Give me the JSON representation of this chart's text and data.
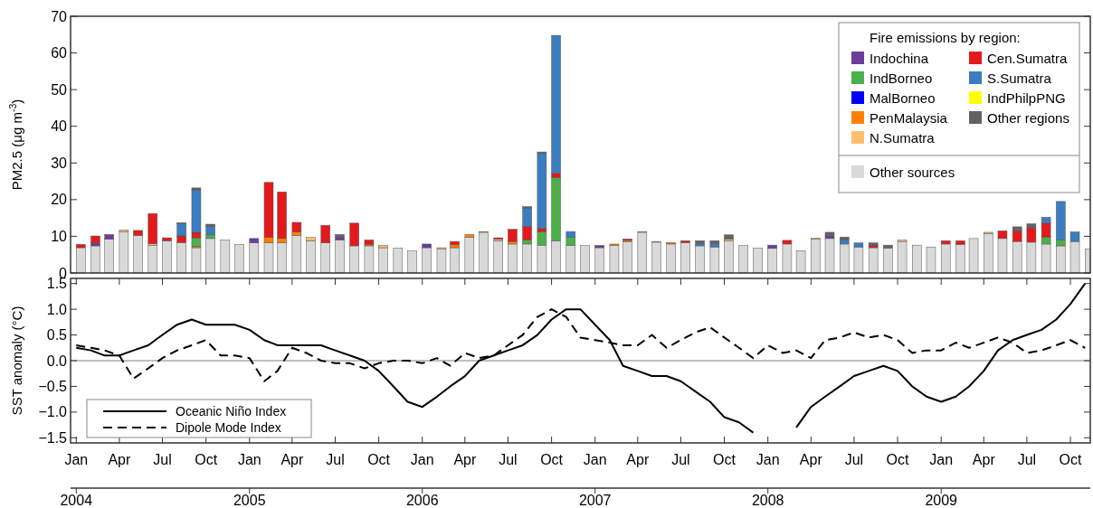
{
  "chart_data": [
    {
      "type": "bar",
      "stacked": true,
      "ylabel": "PM2.5 (μg m$^{-3}$)",
      "legend_title": "Fire emissions by region:",
      "legend": "top right",
      "tick_labels": "y",
      "x": [
        "2004-01",
        "2004-02",
        "2004-03",
        "2004-04",
        "2004-05",
        "2004-06",
        "2004-07",
        "2004-08",
        "2004-09",
        "2004-10",
        "2004-11",
        "2004-12",
        "2005-01",
        "2005-02",
        "2005-03",
        "2005-04",
        "2005-05",
        "2005-06",
        "2005-07",
        "2005-08",
        "2005-09",
        "2005-10",
        "2005-11",
        "2005-12",
        "2006-01",
        "2006-02",
        "2006-03",
        "2006-04",
        "2006-05",
        "2006-06",
        "2006-07",
        "2006-08",
        "2006-09",
        "2006-10",
        "2006-11",
        "2006-12",
        "2007-01",
        "2007-02",
        "2007-03",
        "2007-04",
        "2007-05",
        "2007-06",
        "2007-07",
        "2007-08",
        "2007-09",
        "2007-10",
        "2007-11",
        "2007-12",
        "2008-01",
        "2008-02",
        "2008-03",
        "2008-04",
        "2008-05",
        "2008-06",
        "2008-07",
        "2008-08",
        "2008-09",
        "2008-10",
        "2008-11",
        "2008-12",
        "2009-01",
        "2009-02",
        "2009-03",
        "2009-04",
        "2009-05",
        "2009-06",
        "2009-07",
        "2009-08",
        "2009-09",
        "2009-10",
        "2009-11"
      ],
      "xlim": [
        "2003-12-20",
        "2009-11-12"
      ],
      "ylim": [
        0,
        70
      ],
      "yticks": [
        0,
        10,
        20,
        30,
        40,
        50,
        60,
        70
      ],
      "series": [
        {
          "name": "Other sources",
          "color": "#d9d9d9",
          "values": [
            6.9,
            7.4,
            9.2,
            11.3,
            10.2,
            7.6,
            8.8,
            8.3,
            6.9,
            9.4,
            9.0,
            7.8,
            8.2,
            8.2,
            8.2,
            10.2,
            8.8,
            8.2,
            9.0,
            7.4,
            7.4,
            6.9,
            6.8,
            6.0,
            6.9,
            6.5,
            6.9,
            9.8,
            11.1,
            8.8,
            7.9,
            7.9,
            7.6,
            8.8,
            7.5,
            7.5,
            6.9,
            7.5,
            8.6,
            11.1,
            8.4,
            7.9,
            8.3,
            7.4,
            7.1,
            8.8,
            7.5,
            6.8,
            6.7,
            7.9,
            6.1,
            9.2,
            9.4,
            7.9,
            7.1,
            6.9,
            6.8,
            8.6,
            7.6,
            7.1,
            7.9,
            7.8,
            9.4,
            10.8,
            9.4,
            8.6,
            8.4,
            7.9,
            7.4,
            8.6,
            6.5
          ]
        },
        {
          "name": "N.Sumatra",
          "color": "#fdbf6f",
          "values": [
            0,
            0,
            0,
            0.4,
            0,
            0.4,
            0,
            0,
            0,
            0,
            0,
            0,
            0,
            0,
            0,
            0,
            0.9,
            0,
            0,
            0,
            0,
            0.6,
            0,
            0,
            0,
            0.4,
            0,
            0,
            0.2,
            0.4,
            0,
            0,
            0,
            0,
            0,
            0,
            0,
            0,
            0,
            0.2,
            0.2,
            0,
            0,
            0,
            0,
            0.4,
            0,
            0,
            0,
            0,
            0,
            0.3,
            0,
            0,
            0,
            0,
            0,
            0.4,
            0,
            0,
            0,
            0,
            0,
            0.3,
            0,
            0,
            0,
            0,
            0,
            0,
            0
          ]
        },
        {
          "name": "PenMalaysia",
          "color": "#ff7f00",
          "values": [
            0,
            0,
            0,
            0,
            0,
            0,
            0,
            0,
            0.3,
            0,
            0,
            0,
            0,
            1.5,
            1.2,
            1.0,
            0,
            0,
            0,
            0,
            0.4,
            0,
            0,
            0,
            0,
            0,
            0.8,
            0.7,
            0,
            0,
            0.7,
            0,
            0,
            0,
            0,
            0,
            0,
            0.4,
            0.3,
            0,
            0,
            0.4,
            0,
            0,
            0,
            0,
            0,
            0,
            0,
            0,
            0,
            0,
            0,
            0,
            0,
            0,
            0,
            0,
            0,
            0,
            0,
            0,
            0,
            0,
            0,
            0,
            0,
            0,
            0,
            0,
            0
          ]
        },
        {
          "name": "IndBorneo",
          "color": "#4daf4a",
          "values": [
            0,
            0,
            0,
            0,
            0,
            0,
            0,
            0,
            2.4,
            1.0,
            0,
            0,
            0,
            0,
            0,
            0,
            0,
            0,
            0,
            0,
            0,
            0,
            0,
            0,
            0,
            0,
            0,
            0,
            0,
            0,
            0,
            1.1,
            3.6,
            17.2,
            2.2,
            0,
            0,
            0,
            0,
            0,
            0,
            0,
            0,
            0,
            0,
            0,
            0,
            0,
            0,
            0,
            0,
            0,
            0,
            0,
            0,
            0,
            0,
            0,
            0,
            0,
            0,
            0,
            0,
            0,
            0,
            0,
            0,
            1.9,
            1.6,
            0,
            0
          ]
        },
        {
          "name": "Indochina",
          "color": "#6a3d9a",
          "values": [
            0,
            0.8,
            1.3,
            0,
            0,
            0,
            0,
            0,
            0,
            0,
            0,
            0,
            1.2,
            0,
            0,
            0,
            0,
            0,
            0.8,
            0,
            0,
            0,
            0,
            0,
            1.0,
            0,
            0,
            0,
            0,
            0,
            0,
            0,
            0,
            0,
            0,
            0,
            0.6,
            0,
            0,
            0,
            0,
            0,
            0,
            0,
            0,
            0,
            0,
            0,
            0.9,
            0,
            0,
            0,
            0.8,
            0,
            0,
            0,
            0,
            0,
            0,
            0,
            0,
            0,
            0,
            0,
            0,
            0,
            0,
            0,
            0,
            0,
            0
          ]
        },
        {
          "name": "MalBorneo",
          "color": "#0000ff",
          "values": [
            0,
            0,
            0,
            0,
            0,
            0,
            0,
            0,
            0,
            0,
            0,
            0,
            0,
            0,
            0,
            0,
            0,
            0,
            0,
            0,
            0,
            0,
            0,
            0,
            0,
            0,
            0,
            0,
            0,
            0,
            0,
            0,
            0,
            0,
            0,
            0,
            0,
            0,
            0,
            0,
            0,
            0,
            0,
            0,
            0,
            0,
            0,
            0,
            0,
            0,
            0,
            0,
            0,
            0,
            0,
            0,
            0,
            0,
            0,
            0,
            0,
            0,
            0,
            0,
            0,
            0,
            0,
            0,
            0,
            0,
            0
          ]
        },
        {
          "name": "Cen.Sumatra",
          "color": "#e31a1c",
          "values": [
            0.9,
            1.9,
            0,
            0,
            1.4,
            8.2,
            0.8,
            1.8,
            1.5,
            0,
            0,
            0,
            0,
            15.0,
            12.7,
            2.6,
            0,
            4.8,
            0,
            6.2,
            1.2,
            0,
            0,
            0,
            0,
            0,
            0.9,
            0,
            0,
            0.4,
            3.3,
            3.7,
            0.9,
            1.2,
            0,
            0,
            0,
            0,
            0.4,
            0,
            0,
            0,
            0.5,
            0,
            0,
            0,
            0,
            0,
            0,
            1.0,
            0,
            0,
            0,
            0,
            0,
            0.7,
            0,
            0,
            0,
            0,
            0.9,
            1.0,
            0,
            0,
            2.1,
            2.9,
            3.9,
            3.8,
            0,
            0,
            0
          ]
        },
        {
          "name": "S.Sumatra",
          "color": "#3a7dc0",
          "values": [
            0,
            0,
            0,
            0,
            0,
            0,
            0,
            3.3,
            11.5,
            2.3,
            0,
            0,
            0,
            0,
            0,
            0,
            0,
            0,
            0,
            0,
            0,
            0,
            0,
            0,
            0,
            0,
            0,
            0,
            0,
            0,
            0,
            5.0,
            20.5,
            37.6,
            1.6,
            0,
            0,
            0,
            0,
            0,
            0,
            0,
            0,
            0.7,
            0.9,
            0,
            0,
            0,
            0,
            0,
            0,
            0,
            0,
            1.2,
            1.1,
            0,
            0,
            0,
            0,
            0,
            0,
            0,
            0,
            0,
            0,
            0,
            0,
            1.6,
            10.5,
            2.6,
            0
          ]
        },
        {
          "name": "IndPhilpPNG",
          "color": "#ffff00",
          "values": [
            0,
            0,
            0,
            0,
            0,
            0,
            0,
            0,
            0,
            0,
            0,
            0,
            0,
            0,
            0,
            0,
            0,
            0,
            0,
            0,
            0,
            0,
            0,
            0,
            0,
            0,
            0,
            0,
            0,
            0,
            0,
            0,
            0,
            0,
            0,
            0,
            0,
            0,
            0,
            0,
            0,
            0,
            0,
            0,
            0,
            0,
            0,
            0,
            0,
            0,
            0,
            0,
            0,
            0,
            0,
            0,
            0,
            0,
            0,
            0,
            0,
            0,
            0,
            0,
            0,
            0,
            0,
            0,
            0,
            0,
            0
          ]
        },
        {
          "name": "Other regions",
          "color": "#636363",
          "values": [
            0,
            0,
            0,
            0,
            0,
            0,
            0,
            0.3,
            0.6,
            0.6,
            0,
            0,
            0,
            0,
            0,
            0,
            0,
            0,
            0.7,
            0,
            0,
            0,
            0,
            0,
            0,
            0,
            0,
            0,
            0,
            0,
            0,
            0.4,
            0.4,
            0,
            0,
            0,
            0,
            0,
            0,
            0,
            0,
            0,
            0,
            0.7,
            0.8,
            1.2,
            0,
            0,
            0,
            0,
            0,
            0,
            0.9,
            0.7,
            0,
            0.6,
            0.8,
            0,
            0,
            0,
            0,
            0,
            0,
            0,
            0,
            1.1,
            1.1,
            0,
            0,
            0,
            0
          ]
        }
      ]
    },
    {
      "type": "line",
      "ylabel": "SST anomaly (°C)",
      "legend": "bottom left",
      "x": [
        "2004-01",
        "2004-02",
        "2004-03",
        "2004-04",
        "2004-05",
        "2004-06",
        "2004-07",
        "2004-08",
        "2004-09",
        "2004-10",
        "2004-11",
        "2004-12",
        "2005-01",
        "2005-02",
        "2005-03",
        "2005-04",
        "2005-05",
        "2005-06",
        "2005-07",
        "2005-08",
        "2005-09",
        "2005-10",
        "2005-11",
        "2005-12",
        "2006-01",
        "2006-02",
        "2006-03",
        "2006-04",
        "2006-05",
        "2006-06",
        "2006-07",
        "2006-08",
        "2006-09",
        "2006-10",
        "2006-11",
        "2006-12",
        "2007-01",
        "2007-02",
        "2007-03",
        "2007-04",
        "2007-05",
        "2007-06",
        "2007-07",
        "2007-08",
        "2007-09",
        "2007-10",
        "2007-11",
        "2007-12",
        "2008-01",
        "2008-02",
        "2008-03",
        "2008-04",
        "2008-05",
        "2008-06",
        "2008-07",
        "2008-08",
        "2008-09",
        "2008-10",
        "2008-11",
        "2008-12",
        "2009-01",
        "2009-02",
        "2009-03",
        "2009-04",
        "2009-05",
        "2009-06",
        "2009-07",
        "2009-08",
        "2009-09",
        "2009-10",
        "2009-11"
      ],
      "xlim": [
        "2003-12-20",
        "2009-11-12"
      ],
      "xticks": [
        {
          "value": "2004-01",
          "label": "Jan"
        },
        {
          "value": "2004-04",
          "label": "Apr"
        },
        {
          "value": "2004-07",
          "label": "Jul"
        },
        {
          "value": "2004-10",
          "label": "Oct"
        },
        {
          "value": "2005-01",
          "label": "Jan"
        },
        {
          "value": "2005-04",
          "label": "Apr"
        },
        {
          "value": "2005-07",
          "label": "Jul"
        },
        {
          "value": "2005-10",
          "label": "Oct"
        },
        {
          "value": "2006-01",
          "label": "Jan"
        },
        {
          "value": "2006-04",
          "label": "Apr"
        },
        {
          "value": "2006-07",
          "label": "Jul"
        },
        {
          "value": "2006-10",
          "label": "Oct"
        },
        {
          "value": "2007-01",
          "label": "Jan"
        },
        {
          "value": "2007-04",
          "label": "Apr"
        },
        {
          "value": "2007-07",
          "label": "Jul"
        },
        {
          "value": "2007-10",
          "label": "Oct"
        },
        {
          "value": "2008-01",
          "label": "Jan"
        },
        {
          "value": "2008-04",
          "label": "Apr"
        },
        {
          "value": "2008-07",
          "label": "Jul"
        },
        {
          "value": "2008-10",
          "label": "Oct"
        },
        {
          "value": "2009-01",
          "label": "Jan"
        },
        {
          "value": "2009-04",
          "label": "Apr"
        },
        {
          "value": "2009-07",
          "label": "Jul"
        },
        {
          "value": "2009-10",
          "label": "Oct"
        }
      ],
      "x2lim": [
        "2003-12-20",
        "2009-11-12"
      ],
      "x2ticks": [
        {
          "value": "2004-01",
          "label": "2004"
        },
        {
          "value": "2005-01",
          "label": "2005"
        },
        {
          "value": "2006-01",
          "label": "2006"
        },
        {
          "value": "2007-01",
          "label": "2007"
        },
        {
          "value": "2008-01",
          "label": "2008"
        },
        {
          "value": "2009-01",
          "label": "2009"
        }
      ],
      "ylim": [
        -1.6,
        1.6
      ],
      "yticks": [
        {
          "value": -1.5,
          "label": "−1.5"
        },
        {
          "value": -1.0,
          "label": "−1.0"
        },
        {
          "value": -0.5,
          "label": "−0.5"
        },
        {
          "value": 0,
          "label": "0.0"
        },
        {
          "value": 0.5,
          "label": "0.5"
        },
        {
          "value": 1.0,
          "label": "1.0"
        },
        {
          "value": 1.5,
          "label": "1.5"
        }
      ],
      "ref_lines": [
        {
          "axis": "y",
          "value": 0,
          "color": "#808080"
        }
      ],
      "series": [
        {
          "name": "Oceanic Niño Index",
          "color": "#000000",
          "line_style": "solid",
          "values": [
            0.25,
            0.2,
            0.1,
            0.1,
            0.2,
            0.3,
            0.5,
            0.7,
            0.8,
            0.7,
            0.7,
            0.7,
            0.6,
            0.4,
            0.3,
            0.3,
            0.3,
            0.3,
            0.2,
            0.1,
            0.0,
            -0.2,
            -0.5,
            -0.8,
            -0.9,
            -0.7,
            -0.5,
            -0.3,
            0.0,
            0.1,
            0.2,
            0.3,
            0.5,
            0.8,
            1.0,
            1.0,
            0.7,
            0.4,
            -0.1,
            -0.2,
            -0.3,
            -0.3,
            -0.4,
            -0.6,
            -0.8,
            -1.1,
            -1.2,
            -1.4,
            null,
            null,
            -1.3,
            -0.9,
            -0.7,
            -0.5,
            -0.3,
            -0.2,
            -0.1,
            -0.2,
            -0.5,
            -0.7,
            -0.8,
            -0.7,
            -0.5,
            -0.2,
            0.2,
            0.4,
            0.5,
            0.6,
            0.8,
            1.1,
            1.5
          ]
        },
        {
          "name": "Dipole Mode Index",
          "color": "#000000",
          "line_style": "dashed",
          "values": [
            0.3,
            0.25,
            0.2,
            0.1,
            -0.35,
            -0.15,
            0.05,
            0.2,
            0.3,
            0.4,
            0.1,
            0.1,
            0.05,
            -0.4,
            -0.2,
            0.25,
            0.15,
            0.0,
            -0.05,
            -0.05,
            -0.15,
            -0.05,
            0.0,
            0.0,
            -0.05,
            0.05,
            -0.1,
            0.15,
            0.05,
            0.1,
            0.3,
            0.5,
            0.85,
            1.0,
            0.85,
            0.45,
            0.4,
            0.35,
            0.3,
            0.3,
            0.5,
            0.25,
            0.4,
            0.55,
            0.65,
            0.45,
            0.25,
            0.05,
            0.3,
            0.15,
            0.2,
            0.05,
            0.4,
            0.45,
            0.55,
            0.45,
            0.5,
            0.4,
            0.15,
            0.2,
            0.2,
            0.35,
            0.25,
            0.35,
            0.45,
            0.35,
            0.15,
            0.2,
            0.3,
            0.4,
            0.25
          ]
        }
      ]
    }
  ]
}
